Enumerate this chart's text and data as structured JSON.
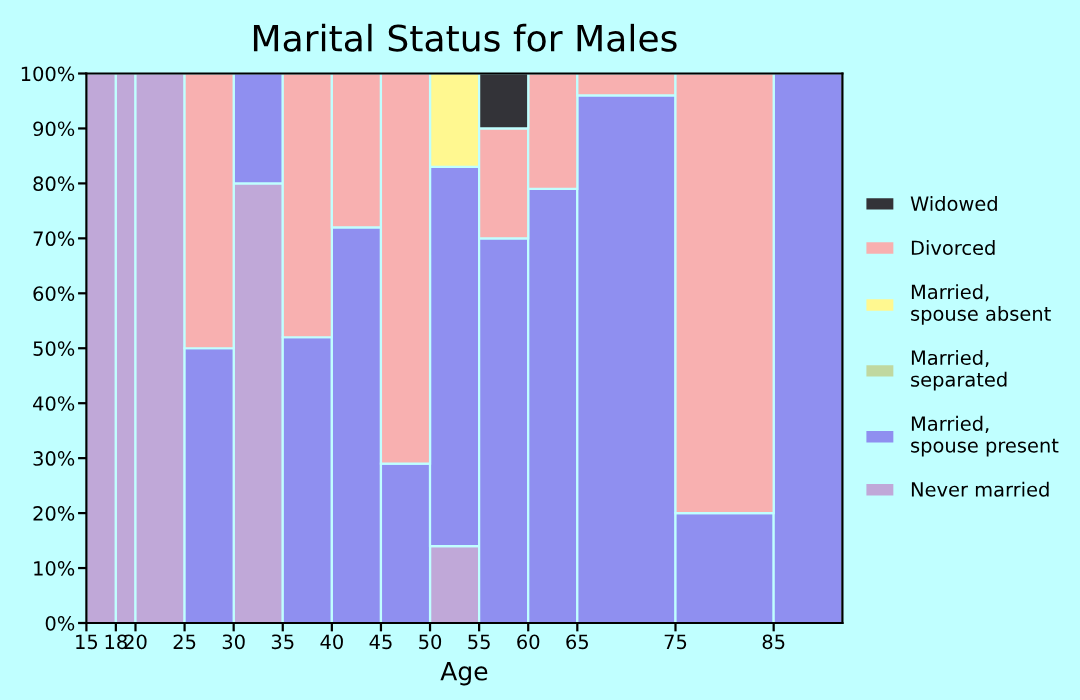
{
  "chart_data": {
    "type": "bar",
    "title": "Marital Status for Males",
    "xlabel": "Age",
    "stacked": true,
    "x": [
      16.5,
      19,
      22.5,
      27.5,
      32.5,
      37.5,
      42.5,
      47.5,
      52.5,
      57.5,
      62.5,
      70,
      80,
      88.5
    ],
    "xlim": [
      15,
      92
    ],
    "xticks": [
      15,
      18,
      20,
      25,
      30,
      35,
      40,
      45,
      50,
      55,
      60,
      65,
      75,
      85
    ],
    "ylim": [
      0,
      100
    ],
    "yticks": [
      {
        "value": 0,
        "label": "0%"
      },
      {
        "value": 10,
        "label": "10%"
      },
      {
        "value": 20,
        "label": "20%"
      },
      {
        "value": 30,
        "label": "30%"
      },
      {
        "value": 40,
        "label": "40%"
      },
      {
        "value": 50,
        "label": "50%"
      },
      {
        "value": 60,
        "label": "60%"
      },
      {
        "value": 70,
        "label": "70%"
      },
      {
        "value": 80,
        "label": "80%"
      },
      {
        "value": 90,
        "label": "90%"
      },
      {
        "value": 100,
        "label": "100%"
      }
    ],
    "series": [
      {
        "name": "Never married",
        "color": "#c0a8d8",
        "values": [
          100,
          100,
          100,
          null,
          80,
          null,
          null,
          null,
          14,
          null,
          null,
          null,
          null,
          null
        ]
      },
      {
        "name": "Married,\nspouse present",
        "color": "#8f8ff0",
        "values": [
          null,
          null,
          null,
          50,
          20,
          52,
          72,
          29,
          69,
          70,
          79,
          96,
          20,
          100
        ]
      },
      {
        "name": "Married,\nseparated",
        "color": "#c0d8a0",
        "values": [
          null,
          null,
          null,
          null,
          null,
          null,
          null,
          null,
          null,
          null,
          null,
          null,
          null,
          null
        ]
      },
      {
        "name": "Married,\nspouse absent",
        "color": "#fff890",
        "values": [
          null,
          null,
          null,
          null,
          null,
          null,
          null,
          null,
          17,
          null,
          null,
          null,
          null,
          null
        ]
      },
      {
        "name": "Divorced",
        "color": "#f8b0b0",
        "values": [
          null,
          null,
          null,
          50,
          null,
          48,
          28,
          71,
          null,
          20,
          21,
          4,
          80,
          null
        ]
      },
      {
        "name": "Widowed",
        "color": "#333338",
        "values": [
          null,
          null,
          null,
          null,
          null,
          null,
          null,
          null,
          null,
          10,
          null,
          null,
          null,
          null
        ]
      }
    ],
    "grid": false,
    "legend": "right"
  }
}
